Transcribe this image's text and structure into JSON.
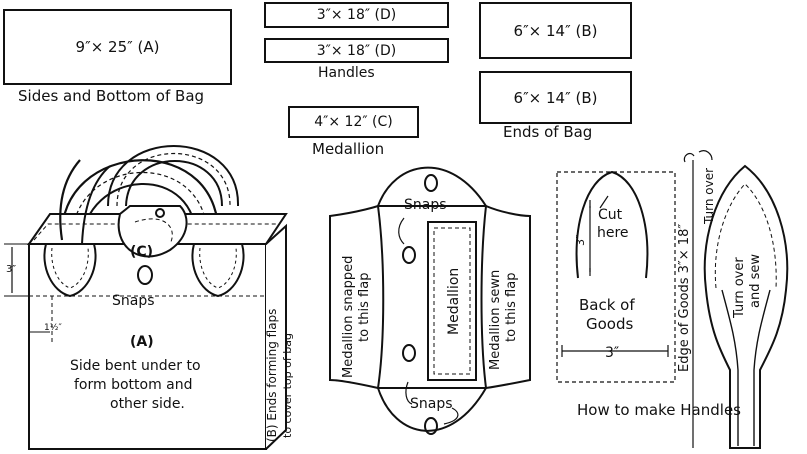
{
  "pieces": {
    "A": {
      "text": "9″× 25″    (A)",
      "caption": "Sides and Bottom of Bag"
    },
    "D1": {
      "text": "3″× 18″    (D)"
    },
    "D2": {
      "text": "3″× 18″    (D)"
    },
    "D_caption": "Handles",
    "B1": {
      "text": "6″× 14″    (B)"
    },
    "B2": {
      "text": "6″× 14″    (B)"
    },
    "B_caption": "Ends of Bag",
    "C": {
      "text": "4″× 12″ (C)"
    },
    "C_caption": "Medallion"
  },
  "bag": {
    "label_c": "(C)",
    "snaps": "Snaps",
    "dim_3": "3″",
    "dim_half": "1½″",
    "label_a": "(A)",
    "side_line1": "Side bent under to",
    "side_line2": "form bottom and",
    "side_line3": "other side.",
    "ends_label": "(B) Ends forming flaps",
    "ends_label2": "to cover top of bag"
  },
  "medallion_view": {
    "snaps_top": "Snaps",
    "snaps_bottom": "Snaps",
    "left_flap_1": "Medallion snapped",
    "left_flap_2": "to this flap",
    "center": "Medallion",
    "right_flap_1": "Medallion sewn",
    "right_flap_2": "to this flap"
  },
  "handles_view": {
    "cut_1": "Cut",
    "cut_2": "here",
    "dim_3v": "3″",
    "back_1": "Back of",
    "back_2": "Goods",
    "dim_3h": "3″",
    "edge_label": "Edge of Goods 3″× 18″",
    "turn_over_top": "Turn over",
    "turn_over_sew_1": "Turn over",
    "turn_over_sew_2": "and sew",
    "caption": "How to make Handles"
  }
}
